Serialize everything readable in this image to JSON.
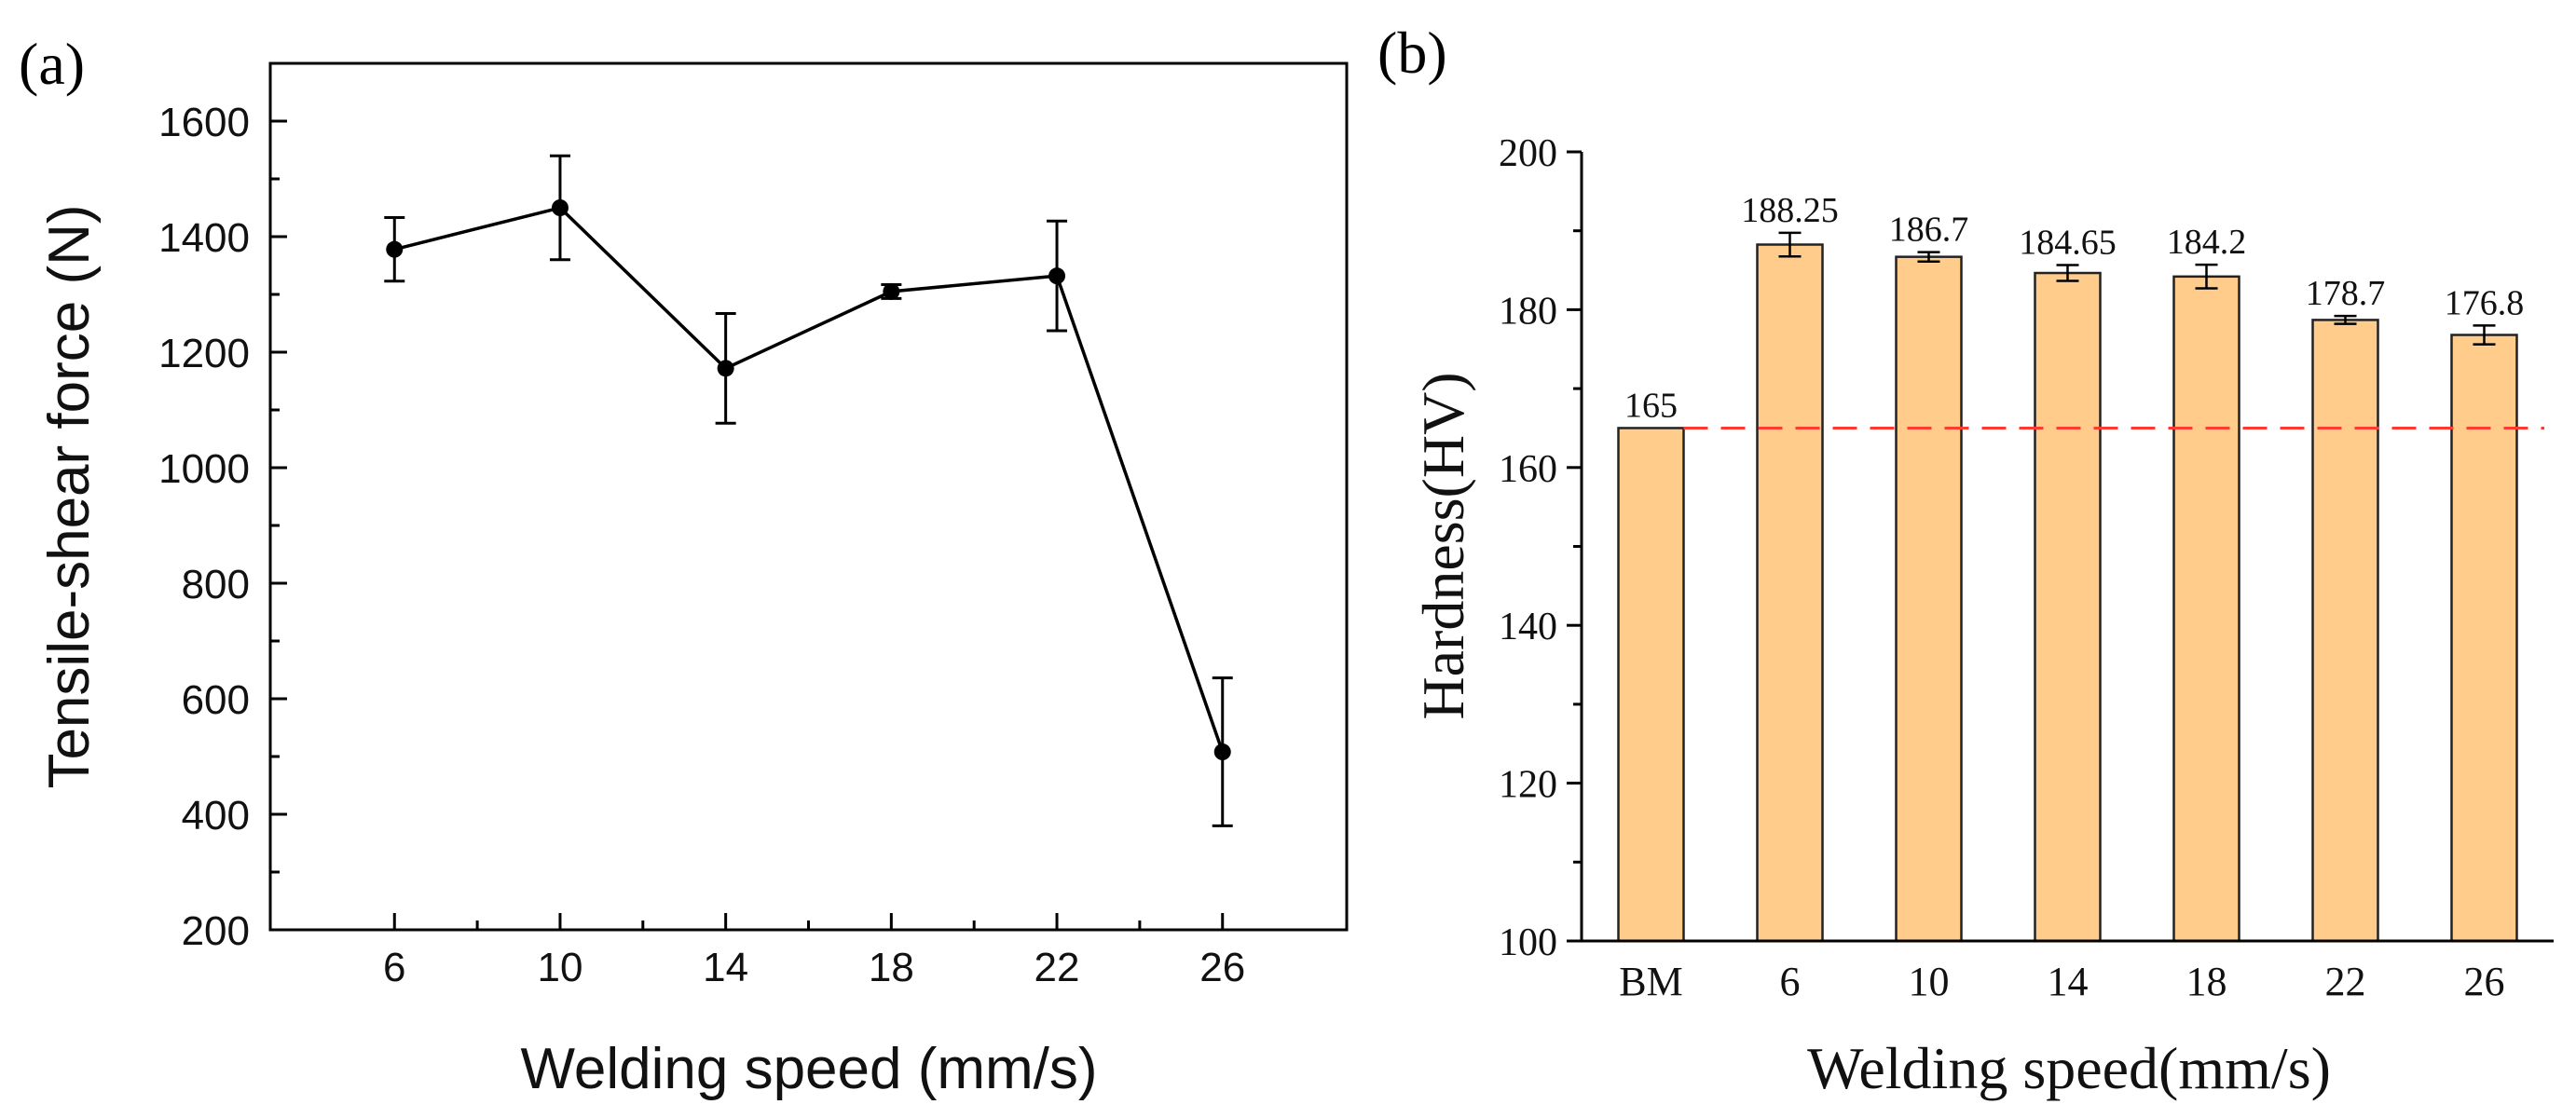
{
  "chart_data": [
    {
      "type": "line",
      "panel_label": "(a)",
      "title": "",
      "xlabel": "Welding speed (mm/s)",
      "ylabel": "Tensile-shear force (N)",
      "xlim": [
        3,
        29
      ],
      "ylim": [
        200,
        1700
      ],
      "x_ticks": [
        6,
        10,
        14,
        18,
        22,
        26
      ],
      "x_tick_labels": [
        "6",
        "10",
        "14",
        "18",
        "22",
        "26"
      ],
      "y_ticks": [
        200,
        400,
        600,
        800,
        1000,
        1200,
        1400,
        1600
      ],
      "y_tick_labels": [
        "200",
        "400",
        "600",
        "800",
        "1000",
        "1200",
        "1400",
        "1600"
      ],
      "grid": false,
      "series": [
        {
          "name": "Tensile-shear force",
          "x": [
            6,
            10,
            14,
            18,
            22,
            26
          ],
          "values": [
            1378,
            1450,
            1172,
            1305,
            1332,
            508
          ],
          "errors": [
            55,
            90,
            95,
            12,
            95,
            128
          ],
          "color": "#000000"
        }
      ]
    },
    {
      "type": "bar",
      "panel_label": "(b)",
      "title": "",
      "xlabel": "Welding speed(mm/s)",
      "ylabel": "Hardness(HV)",
      "ylim": [
        100,
        200
      ],
      "y_ticks": [
        100,
        120,
        140,
        160,
        180,
        200
      ],
      "y_tick_labels": [
        "100",
        "120",
        "140",
        "160",
        "180",
        "200"
      ],
      "grid": false,
      "categories": [
        "BM",
        "6",
        "10",
        "14",
        "18",
        "22",
        "26"
      ],
      "values": [
        165,
        188.25,
        186.7,
        184.65,
        184.2,
        178.7,
        176.8
      ],
      "value_labels": [
        "165",
        "188.25",
        "186.7",
        "184.65",
        "184.2",
        "178.7",
        "176.8"
      ],
      "errors": [
        0,
        1.5,
        0.6,
        1.0,
        1.5,
        0.5,
        1.2
      ],
      "reference_line": {
        "value": 165,
        "style": "dashed",
        "color": "#ff3b30"
      },
      "bar_color": "#ffcc8c"
    }
  ]
}
